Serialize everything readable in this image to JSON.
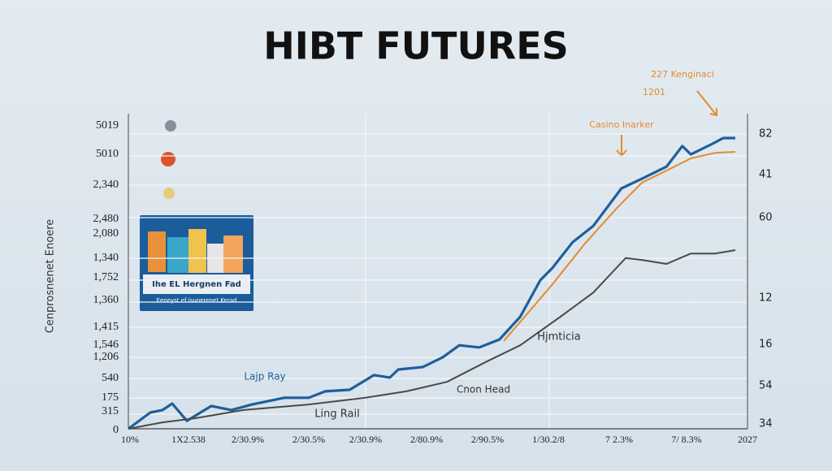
{
  "chart_data": {
    "type": "line",
    "title": "HIBT FUTURES",
    "y_axis_title": "Cenprosnenet Enoere",
    "inset_caption": "Ihe EL Hergnen Fad",
    "inset_subcaption": "Eeneyst ef isunerenet Kerad",
    "annotations": [
      "Hjmticia",
      "Ling Rail",
      "227 Kenginaci",
      "1201"
    ],
    "left_axis_labels": [
      "5019",
      "5010",
      "2,340",
      "2,480",
      "2,080",
      "1,340",
      "1,752",
      "1,360",
      "1,415",
      "1,546",
      "1,206",
      "540",
      "175",
      "315",
      "0"
    ],
    "right_axis_labels": [
      "82",
      "41",
      "60",
      "12",
      "16",
      "54",
      "34"
    ],
    "x_axis_labels": [
      "10%",
      "1X2.538",
      "2/30.9%",
      "2/30.5%",
      "2/30.9%",
      "2/80.9%",
      "2/90.5%",
      "1/30.2/8",
      "7 2.3%",
      "7/ 8.3%",
      "2027"
    ],
    "xlim": [
      0,
      100
    ],
    "ylim": [
      0,
      100
    ],
    "grid": true,
    "series": [
      {
        "name": "Lajp Ray",
        "color": "#1e5f9c",
        "x": [
          0,
          3.6,
          5.6,
          7.2,
          9.6,
          13.6,
          16.9,
          20.3,
          25.6,
          29.6,
          32.3,
          36.3,
          40.3,
          42.9,
          44.3,
          48.3,
          51.6,
          54.3,
          57.6,
          60.9,
          64.3,
          67.6,
          69.6,
          72.9,
          76.3,
          80.9,
          84.3,
          88.3,
          90.9,
          92.3,
          95.6,
          97.6,
          99.6
        ],
        "values": [
          0,
          5.3,
          6.1,
          8.2,
          2.6,
          7.4,
          6.1,
          7.9,
          10.1,
          10.1,
          12.2,
          12.7,
          17.5,
          16.7,
          19.3,
          20.1,
          23.3,
          27.2,
          26.5,
          29.1,
          36.5,
          48.4,
          52.4,
          60.8,
          66.1,
          78.3,
          81.5,
          85.4,
          92.1,
          89.4,
          92.6,
          94.7,
          94.7
        ]
      },
      {
        "name": "Casino Inarker",
        "color": "#e48a2e",
        "x": [
          61.6,
          65.6,
          69.6,
          74.9,
          80.3,
          84.3,
          88.3,
          92.3,
          96.3,
          99.6
        ],
        "values": [
          28.6,
          37.8,
          47.1,
          60.3,
          72.2,
          80.2,
          84.1,
          88.1,
          89.9,
          90.2
        ]
      },
      {
        "name": "Cnon Head",
        "color": "#4a4a4a",
        "x": [
          0,
          5.6,
          10.9,
          18.9,
          29.6,
          38.9,
          45.6,
          52.3,
          58.9,
          64.3,
          70.9,
          76.3,
          81.6,
          84.3,
          88.3,
          92.3,
          96.3,
          99.6
        ],
        "values": [
          0,
          2.1,
          3.4,
          6.1,
          7.9,
          10.1,
          12.2,
          15.3,
          22,
          27.2,
          36.5,
          44.4,
          55.6,
          55,
          53.7,
          57.1,
          57.1,
          58.2
        ]
      }
    ]
  }
}
